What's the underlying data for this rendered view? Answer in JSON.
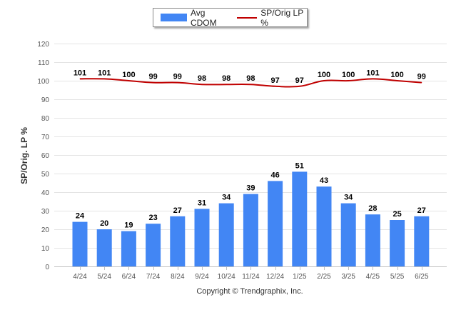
{
  "legend": {
    "bar_label": "Avg CDOM",
    "line_label": "SP/Orig LP %"
  },
  "footer": {
    "copyright": "Copyright © Trendgraphix, Inc."
  },
  "colors": {
    "bar": "#4286f4",
    "line": "#c00000",
    "grid": "#e4e4e4"
  },
  "chart_data": {
    "type": "bar",
    "title": "",
    "xlabel": "",
    "ylabel": "SP/Orig. LP %",
    "ylim": [
      0,
      120
    ],
    "yticks": [
      0,
      10,
      20,
      30,
      40,
      50,
      60,
      70,
      80,
      90,
      100,
      110,
      120
    ],
    "grid": true,
    "legend_position": "top",
    "categories": [
      "4/24",
      "5/24",
      "6/24",
      "7/24",
      "8/24",
      "9/24",
      "10/24",
      "11/24",
      "12/24",
      "1/25",
      "2/25",
      "3/25",
      "4/25",
      "5/25",
      "6/25"
    ],
    "series": [
      {
        "name": "Avg CDOM",
        "type": "bar",
        "values": [
          24,
          20,
          19,
          23,
          27,
          31,
          34,
          39,
          46,
          51,
          43,
          34,
          28,
          25,
          27
        ]
      },
      {
        "name": "SP/Orig LP %",
        "type": "line",
        "values": [
          101,
          101,
          100,
          99,
          99,
          98,
          98,
          98,
          97,
          97,
          100,
          100,
          101,
          100,
          99
        ]
      }
    ]
  }
}
